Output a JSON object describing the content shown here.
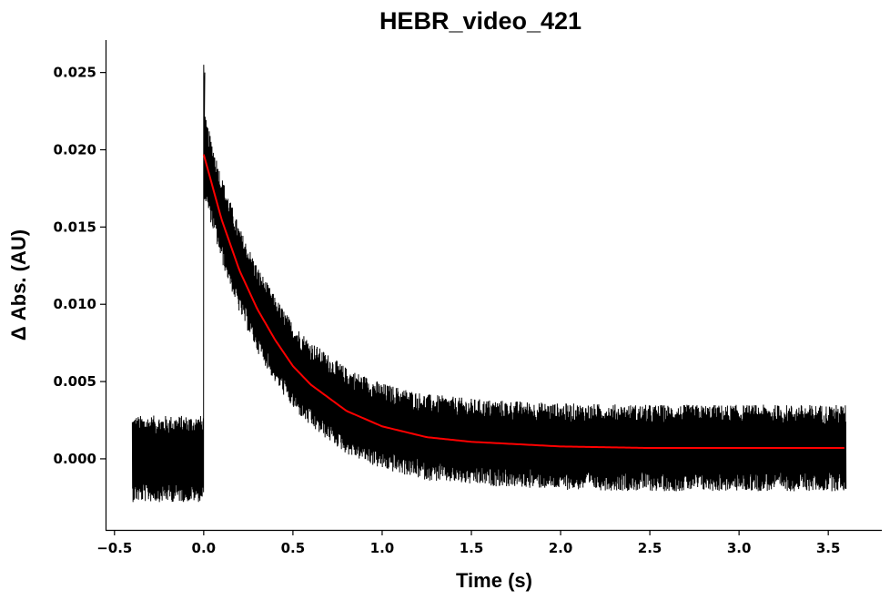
{
  "chart_data": {
    "type": "line",
    "title": "HEBR_video_421",
    "xlabel": "Time (s)",
    "ylabel": "Δ Abs. (AU)",
    "xlim": [
      -0.55,
      3.8
    ],
    "ylim": [
      -0.0046,
      0.0271
    ],
    "xticks": [
      {
        "value": -0.5,
        "label": "−0.5"
      },
      {
        "value": 0.0,
        "label": "0.0"
      },
      {
        "value": 0.5,
        "label": "0.5"
      },
      {
        "value": 1.0,
        "label": "1.0"
      },
      {
        "value": 1.5,
        "label": "1.5"
      },
      {
        "value": 2.0,
        "label": "2.0"
      },
      {
        "value": 2.5,
        "label": "2.5"
      },
      {
        "value": 3.0,
        "label": "3.0"
      },
      {
        "value": 3.5,
        "label": "3.5"
      }
    ],
    "yticks": [
      {
        "value": 0.0,
        "label": "0.000"
      },
      {
        "value": 0.005,
        "label": "0.005"
      },
      {
        "value": 0.01,
        "label": "0.010"
      },
      {
        "value": 0.015,
        "label": "0.015"
      },
      {
        "value": 0.02,
        "label": "0.020"
      },
      {
        "value": 0.025,
        "label": "0.025"
      }
    ],
    "grid": false,
    "legend": "none",
    "series": [
      {
        "color": "#000000",
        "style": "noisy measured trace",
        "t_start": -0.4,
        "t_end": 3.6,
        "pre_pulse_baseline": 0.0,
        "pulse_time": 0.0,
        "peak": 0.0255,
        "noise_band_halfwidth": 0.0028,
        "x": [
          -0.4,
          -0.2,
          0.0,
          0.0,
          0.1,
          0.2,
          0.3,
          0.4,
          0.5,
          0.6,
          0.8,
          1.0,
          1.25,
          1.5,
          2.0,
          2.5,
          3.0,
          3.6
        ],
        "y": [
          0.0,
          0.0,
          0.0,
          0.0197,
          0.0155,
          0.0122,
          0.0097,
          0.0077,
          0.006,
          0.0048,
          0.0031,
          0.0021,
          0.0014,
          0.0011,
          0.0008,
          0.0007,
          0.0007,
          0.0007
        ]
      },
      {
        "color": "#ff0000",
        "style": "exponential fit",
        "x": [
          0.0,
          0.1,
          0.2,
          0.3,
          0.4,
          0.5,
          0.6,
          0.8,
          1.0,
          1.25,
          1.5,
          2.0,
          2.5,
          3.0,
          3.6
        ],
        "y": [
          0.0197,
          0.0155,
          0.0122,
          0.0097,
          0.0077,
          0.006,
          0.0048,
          0.0031,
          0.0021,
          0.0014,
          0.0011,
          0.0008,
          0.0007,
          0.0007,
          0.0007
        ]
      }
    ]
  }
}
